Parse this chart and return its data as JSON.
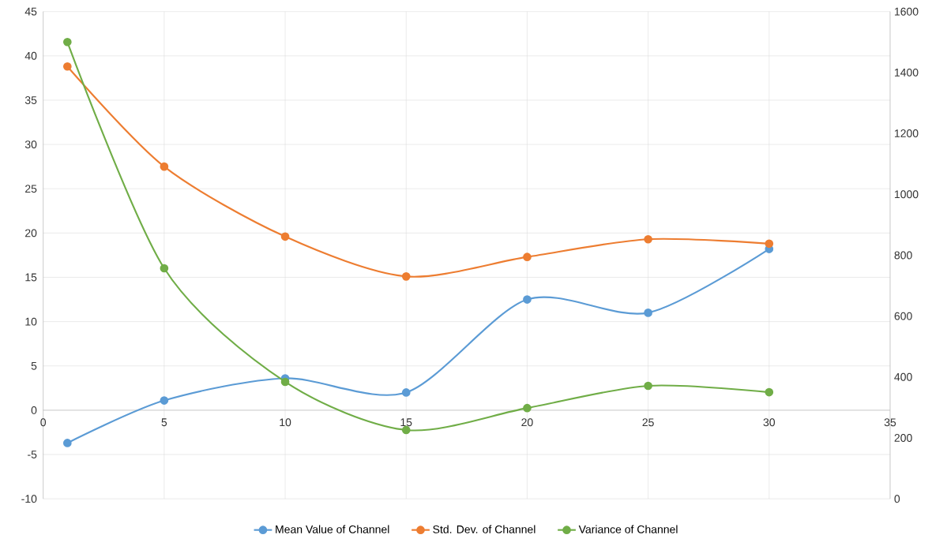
{
  "chart_data": {
    "type": "line",
    "x": [
      1,
      5,
      10,
      15,
      20,
      25,
      30
    ],
    "series": [
      {
        "name": "Mean Value of Channel",
        "color": "#5b9bd5",
        "values": [
          -3.7,
          1.1,
          3.6,
          2.0,
          12.5,
          11.0,
          18.2
        ]
      },
      {
        "name": "Std. Dev. of Channel",
        "color": "#ed7d31",
        "values": [
          38.8,
          27.5,
          19.6,
          15.1,
          17.3,
          19.3,
          18.8
        ]
      },
      {
        "name": "Variance of Channel",
        "color": "#70ad47",
        "axis": "y2",
        "values": [
          1500,
          757,
          384,
          226,
          298,
          371,
          350
        ]
      }
    ],
    "xlim": [
      0,
      35
    ],
    "xticks": [
      0,
      5,
      10,
      15,
      20,
      25,
      30,
      35
    ],
    "ylim": [
      -10,
      45
    ],
    "yticks": [
      -10,
      -5,
      0,
      5,
      10,
      15,
      20,
      25,
      30,
      35,
      40,
      45
    ],
    "y2lim": [
      0,
      1600
    ],
    "y2ticks": [
      0,
      200,
      400,
      600,
      800,
      1000,
      1200,
      1400,
      1600
    ],
    "grid": true,
    "legend": "bottom",
    "marker": "circle",
    "line_style": "solid"
  }
}
